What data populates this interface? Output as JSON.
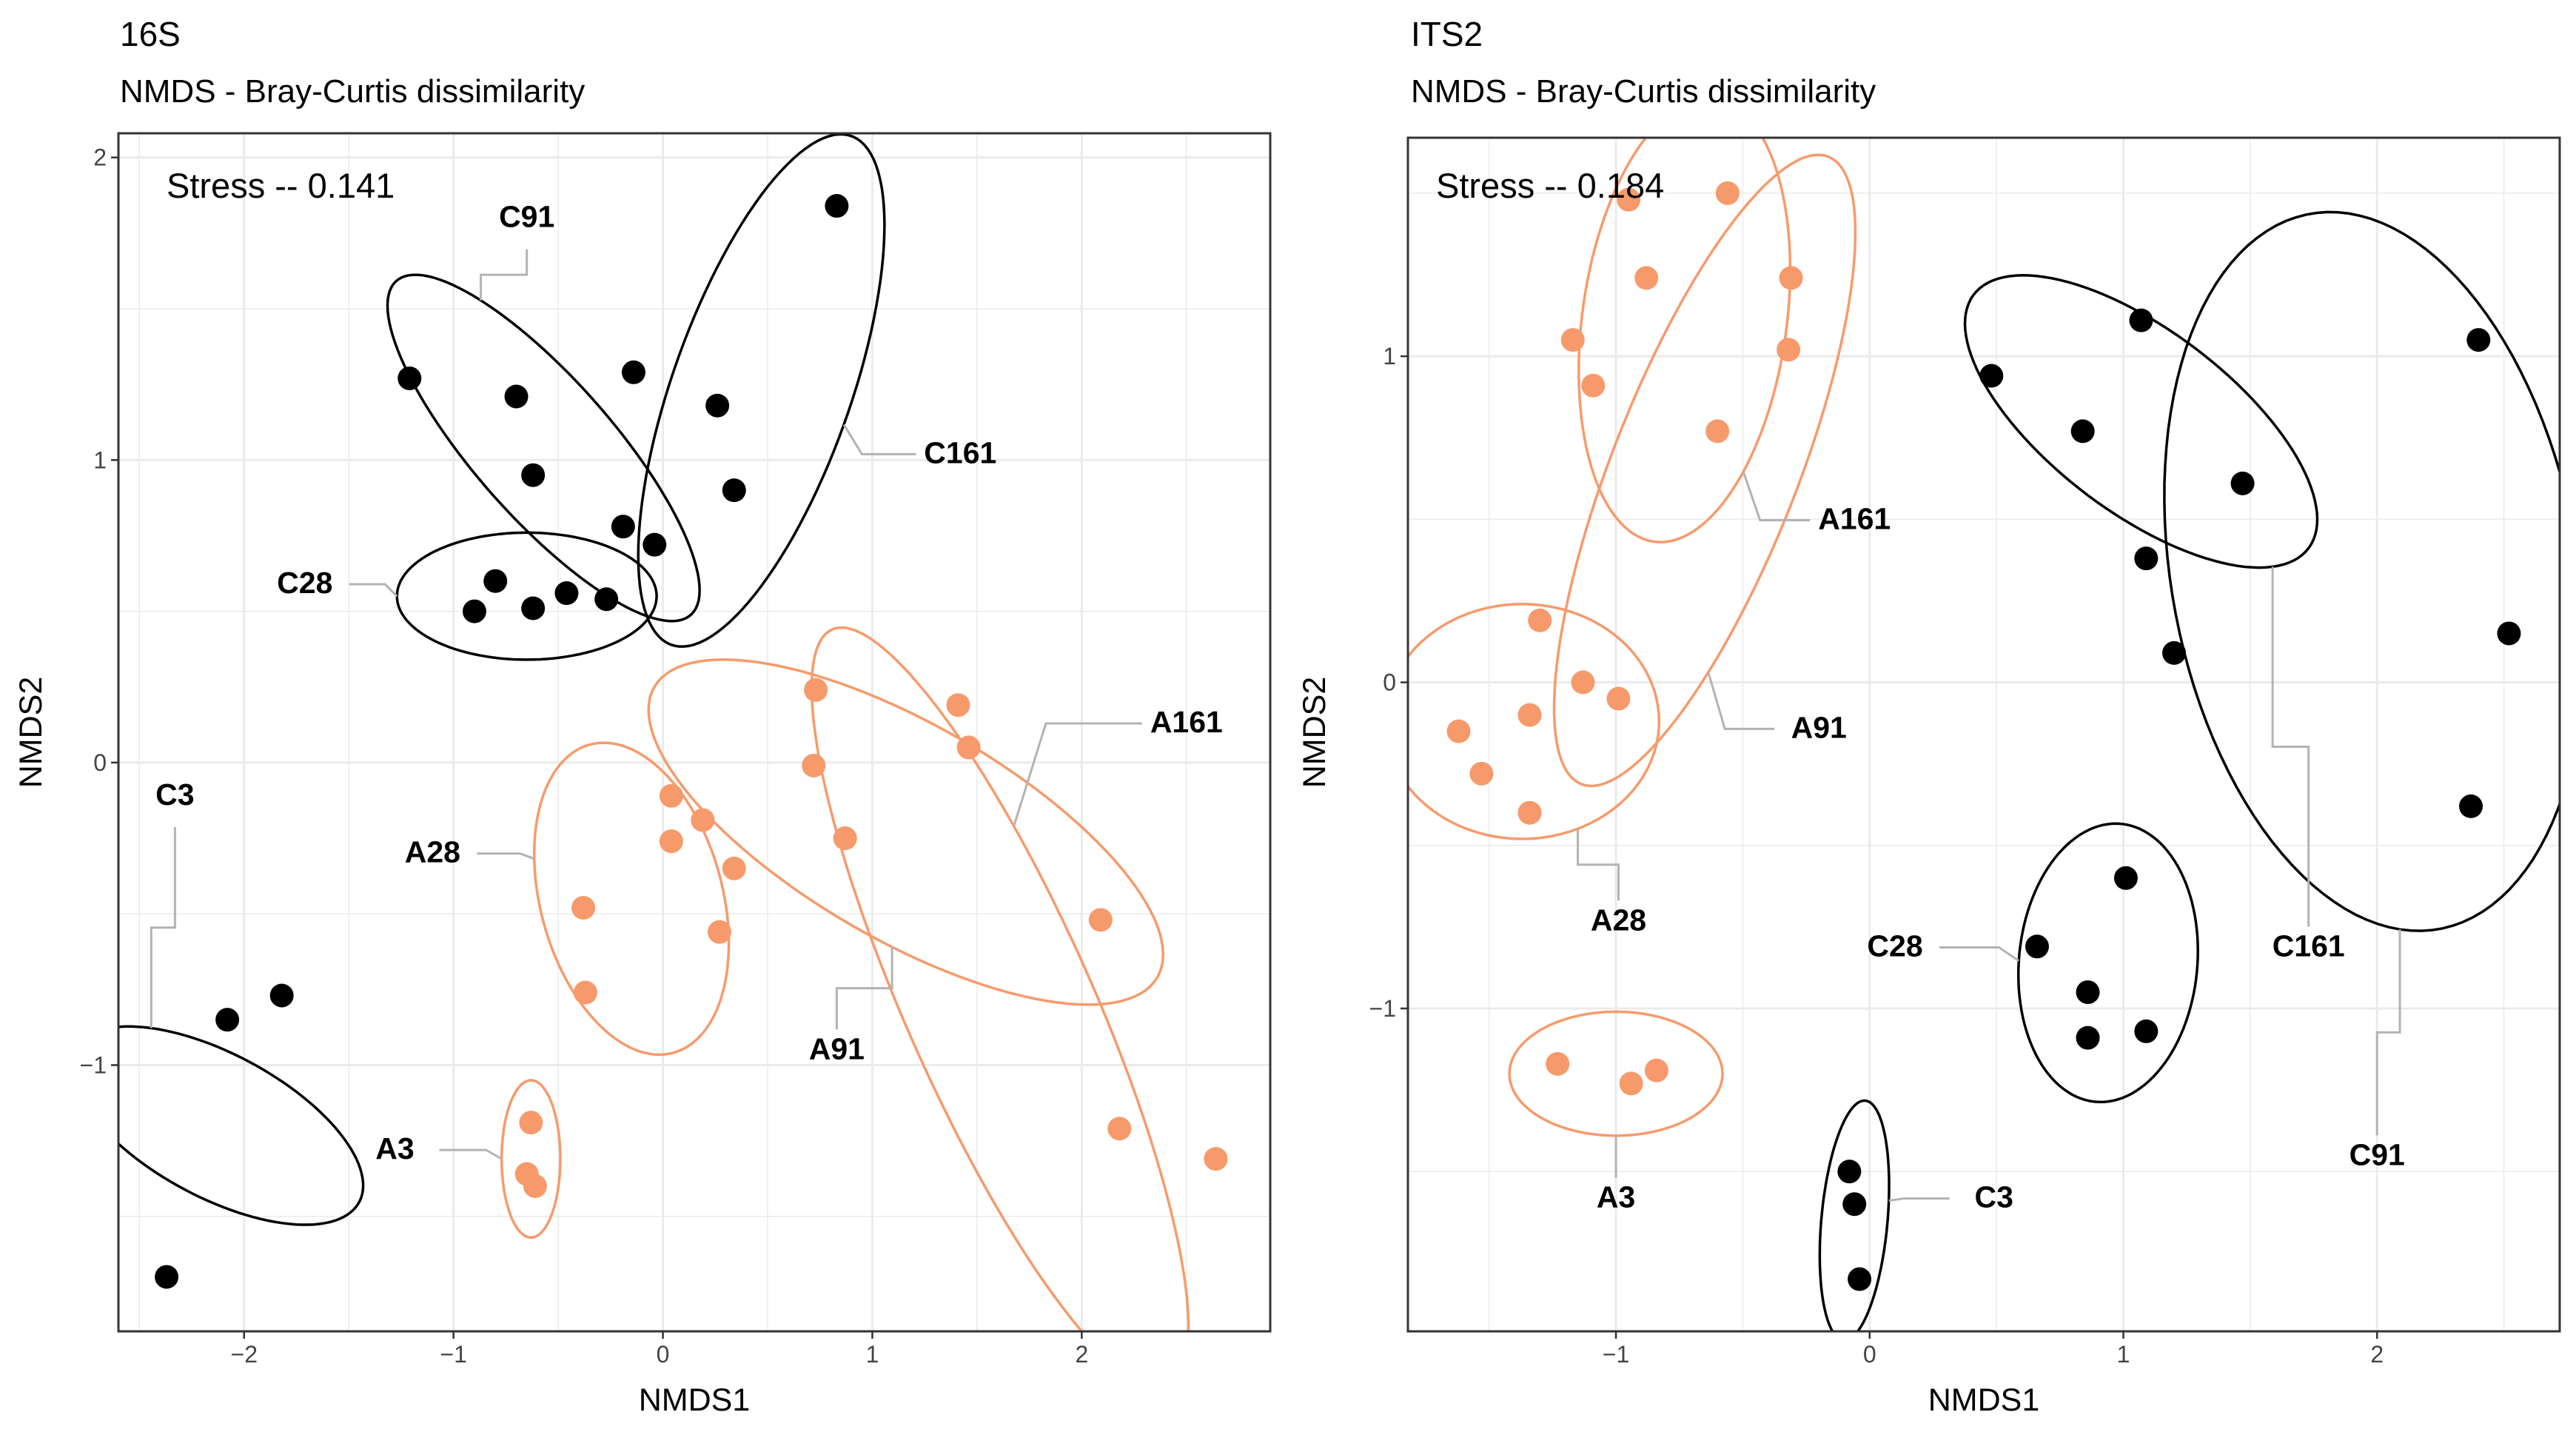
{
  "colors": {
    "control": "#000000",
    "treatment": "#f79a6b",
    "leader": "#b3b3b3",
    "grid": "#ebebeb"
  },
  "chart_data": [
    {
      "type": "scatter",
      "title": "16S",
      "subtitle": "NMDS - Bray-Curtis dissimilarity",
      "xlabel": "NMDS1",
      "ylabel": "NMDS2",
      "xlim": [
        -2.6,
        2.9
      ],
      "ylim": [
        -1.88,
        2.08
      ],
      "xticks": [
        -2,
        -1,
        0,
        1,
        2
      ],
      "yticks": [
        -1,
        0,
        1,
        2
      ],
      "grid": true,
      "annotation": "Stress -- 0.141",
      "groups": [
        {
          "name": "C3",
          "kind": "control",
          "points": [
            [
              -2.37,
              -1.7
            ],
            [
              -2.08,
              -0.85
            ],
            [
              -1.82,
              -0.77
            ]
          ],
          "ellipse": {
            "center": [
              -2.13,
              -1.2
            ],
            "semi_axes": [
              0.25,
              0.73
            ],
            "angle": 72
          },
          "label_at": [
            -2.33,
            -0.14
          ]
        },
        {
          "name": "C28",
          "kind": "control",
          "points": [
            [
              -0.9,
              0.5
            ],
            [
              -0.8,
              0.6
            ],
            [
              -0.62,
              0.51
            ],
            [
              -0.46,
              0.56
            ],
            [
              -0.27,
              0.54
            ]
          ],
          "ellipse": {
            "center": [
              -0.65,
              0.55
            ],
            "semi_axes": [
              0.62,
              0.21
            ],
            "angle": 0
          },
          "label_at": [
            -1.71,
            0.56
          ]
        },
        {
          "name": "C91",
          "kind": "control",
          "points": [
            [
              -1.21,
              1.27
            ],
            [
              -0.7,
              1.21
            ],
            [
              -0.62,
              0.95
            ],
            [
              -0.14,
              1.29
            ],
            [
              -0.19,
              0.78
            ],
            [
              -0.04,
              0.72
            ]
          ],
          "ellipse": {
            "center": [
              -0.57,
              1.04
            ],
            "semi_axes": [
              0.9,
              0.27
            ],
            "angle": -36
          },
          "label_at": [
            -0.65,
            1.77
          ]
        },
        {
          "name": "C161",
          "kind": "control",
          "points": [
            [
              0.83,
              1.84
            ],
            [
              0.26,
              1.18
            ],
            [
              0.34,
              0.9
            ]
          ],
          "ellipse": {
            "center": [
              0.47,
              1.23
            ],
            "semi_axes": [
              0.95,
              0.4
            ],
            "angle": 60
          },
          "label_at": [
            1.42,
            0.99
          ]
        },
        {
          "name": "A3",
          "kind": "treatment",
          "points": [
            [
              -0.63,
              -1.19
            ],
            [
              -0.65,
              -1.36
            ],
            [
              -0.61,
              -1.4
            ]
          ],
          "ellipse": {
            "center": [
              -0.63,
              -1.31
            ],
            "semi_axes": [
              0.26,
              0.14
            ],
            "angle": 90
          },
          "label_at": [
            -1.28,
            -1.31
          ]
        },
        {
          "name": "A28",
          "kind": "treatment",
          "points": [
            [
              -0.38,
              -0.48
            ],
            [
              -0.37,
              -0.76
            ],
            [
              0.04,
              -0.11
            ],
            [
              0.04,
              -0.26
            ],
            [
              0.19,
              -0.19
            ],
            [
              0.34,
              -0.35
            ],
            [
              0.27,
              -0.56
            ]
          ],
          "ellipse": {
            "center": [
              -0.15,
              -0.45
            ],
            "semi_axes": [
              0.56,
              0.41
            ],
            "angle": -55
          },
          "label_at": [
            -1.1,
            -0.33
          ]
        },
        {
          "name": "A91",
          "kind": "treatment",
          "points": [
            [
              0.73,
              0.24
            ],
            [
              1.41,
              0.19
            ],
            [
              1.46,
              0.05
            ],
            [
              0.72,
              -0.01
            ],
            [
              0.87,
              -0.25
            ],
            [
              2.09,
              -0.52
            ]
          ],
          "ellipse": {
            "center": [
              1.16,
              -0.23
            ],
            "semi_axes": [
              1.3,
              0.38
            ],
            "angle": -20
          },
          "label_at": [
            0.83,
            -0.98
          ]
        },
        {
          "name": "A161",
          "kind": "treatment",
          "points": [
            [
              2.18,
              -1.21
            ],
            [
              2.64,
              -1.31
            ]
          ],
          "ellipse": {
            "center": [
              1.61,
              -0.81
            ],
            "semi_axes": [
              1.49,
              0.41
            ],
            "angle": -56
          },
          "label_at": [
            2.5,
            0.1
          ]
        }
      ]
    },
    {
      "type": "scatter",
      "title": "ITS2",
      "subtitle": "NMDS - Bray-Curtis dissimilarity",
      "xlabel": "NMDS1",
      "ylabel": "NMDS2",
      "xlim": [
        -1.82,
        2.72
      ],
      "ylim": [
        -1.99,
        1.67
      ],
      "xticks": [
        -1,
        0,
        1,
        2
      ],
      "yticks": [
        -1,
        0,
        1
      ],
      "grid": true,
      "annotation": "Stress -- 0.184",
      "groups": [
        {
          "name": "A3",
          "kind": "treatment",
          "points": [
            [
              -1.23,
              -1.17
            ],
            [
              -0.94,
              -1.23
            ],
            [
              -0.84,
              -1.19
            ]
          ],
          "ellipse": {
            "center": [
              -1.0,
              -1.2
            ],
            "semi_axes": [
              0.42,
              0.19
            ],
            "angle": 0
          },
          "label_at": [
            -1.0,
            -1.61
          ]
        },
        {
          "name": "A28",
          "kind": "treatment",
          "points": [
            [
              -1.3,
              0.19
            ],
            [
              -1.13,
              0.0
            ],
            [
              -0.99,
              -0.05
            ],
            [
              -1.34,
              -0.1
            ],
            [
              -1.62,
              -0.15
            ],
            [
              -1.53,
              -0.28
            ],
            [
              -1.34,
              -0.4
            ]
          ],
          "ellipse": {
            "center": [
              -1.37,
              -0.12
            ],
            "semi_axes": [
              0.54,
              0.36
            ],
            "angle": 0
          },
          "label_at": [
            -0.99,
            -0.76
          ]
        },
        {
          "name": "A91",
          "kind": "treatment",
          "points": [
            [
              -0.95,
              1.48
            ],
            [
              -0.56,
              1.5
            ],
            [
              -0.88,
              1.24
            ],
            [
              -0.31,
              1.24
            ],
            [
              -1.17,
              1.05
            ],
            [
              -1.09,
              0.91
            ],
            [
              -0.32,
              1.02
            ],
            [
              -0.6,
              0.77
            ]
          ],
          "ellipse": {
            "center": [
              -0.65,
              0.65
            ],
            "semi_axes": [
              1.08,
              0.35
            ],
            "angle": 62
          },
          "label_at": [
            -0.2,
            -0.17
          ]
        },
        {
          "name": "A161",
          "kind": "treatment",
          "points": [],
          "ellipse": {
            "center": [
              -0.73,
              1.11
            ],
            "semi_axes": [
              0.69,
              0.4
            ],
            "angle": 78
          },
          "label_at": [
            -0.06,
            0.47
          ]
        },
        {
          "name": "C3",
          "kind": "control",
          "points": [
            [
              -0.08,
              -1.5
            ],
            [
              -0.06,
              -1.6
            ],
            [
              -0.04,
              -1.83
            ]
          ],
          "ellipse": {
            "center": [
              -0.06,
              -1.65
            ],
            "semi_axes": [
              0.37,
              0.13
            ],
            "angle": 83
          },
          "label_at": [
            0.49,
            -1.61
          ]
        },
        {
          "name": "C28",
          "kind": "control",
          "points": [
            [
              1.01,
              -0.6
            ],
            [
              0.66,
              -0.81
            ],
            [
              0.86,
              -0.95
            ],
            [
              1.09,
              -1.07
            ],
            [
              0.86,
              -1.09
            ]
          ],
          "ellipse": {
            "center": [
              0.94,
              -0.86
            ],
            "semi_axes": [
              0.43,
              0.35
            ],
            "angle": 78
          },
          "label_at": [
            0.1,
            -0.84
          ]
        },
        {
          "name": "C161",
          "kind": "control",
          "points": [
            [
              0.48,
              0.94
            ],
            [
              0.84,
              0.77
            ],
            [
              1.07,
              1.11
            ],
            [
              1.47,
              0.61
            ],
            [
              1.09,
              0.38
            ],
            [
              1.2,
              0.09
            ]
          ],
          "ellipse": {
            "center": [
              1.07,
              0.8
            ],
            "semi_axes": [
              0.77,
              0.3
            ],
            "angle": -28
          },
          "label_at": [
            1.73,
            -0.84
          ]
        },
        {
          "name": "C91",
          "kind": "control",
          "points": [
            [
              2.4,
              1.05
            ],
            [
              2.52,
              0.15
            ],
            [
              2.37,
              -0.38
            ]
          ],
          "ellipse": {
            "center": [
              1.99,
              0.34
            ],
            "semi_axes": [
              1.13,
              0.79
            ],
            "angle": -72
          },
          "label_at": [
            2.0,
            -1.48
          ]
        }
      ]
    }
  ]
}
